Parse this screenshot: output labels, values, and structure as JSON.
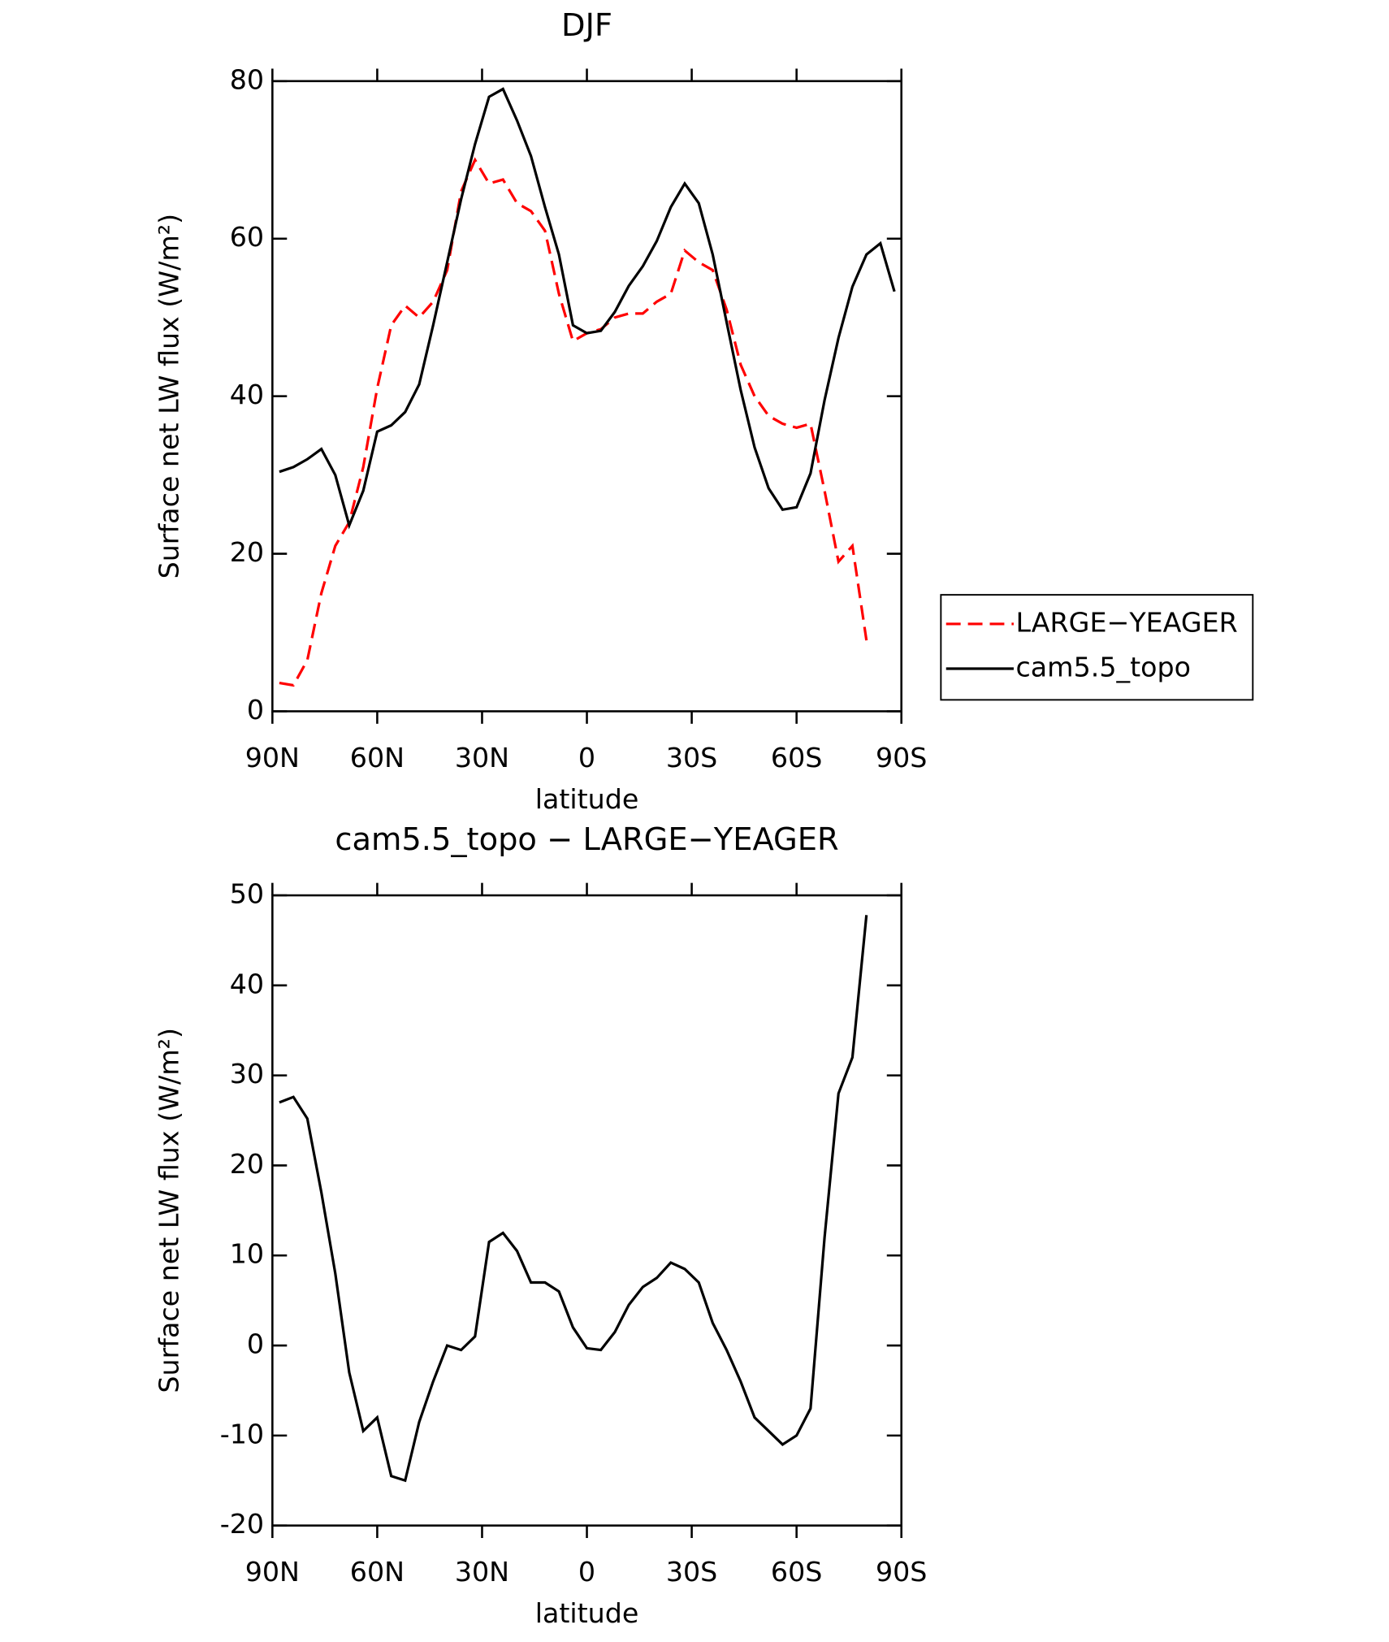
{
  "chart_data": [
    {
      "type": "line",
      "title": "DJF",
      "xlabel": "latitude",
      "ylabel": "Surface net LW flux (W/m²)",
      "x": [
        88,
        84,
        80,
        76,
        72,
        68,
        64,
        60,
        56,
        52,
        48,
        44,
        40,
        36,
        32,
        28,
        24,
        20,
        16,
        12,
        8,
        4,
        0,
        -4,
        -8,
        -12,
        -16,
        -20,
        -24,
        -28,
        -32,
        -36,
        -40,
        -44,
        -48,
        -52,
        -56,
        -60,
        -64,
        -68,
        -72,
        -76,
        -80,
        -84,
        -88
      ],
      "series": [
        {
          "name": "LARGE−YEAGER",
          "color": "#ff0000",
          "linestyle": "dashed",
          "values": [
            3.6,
            3.3,
            6.5,
            15,
            21,
            24,
            31,
            41,
            49,
            51.5,
            50,
            52,
            56,
            66,
            70,
            67,
            67.5,
            64.5,
            63.5,
            61,
            53,
            47,
            48,
            48.5,
            50,
            50.5,
            50.5,
            52,
            53,
            58.5,
            57,
            56,
            51,
            44,
            40,
            37.5,
            36.5,
            36,
            36.5,
            28,
            19,
            21,
            9,
            null,
            null
          ]
        },
        {
          "name": "cam5.5_topo",
          "color": "#000000",
          "linestyle": "solid",
          "values": [
            30.4,
            31,
            32,
            33.3,
            30,
            23.6,
            28,
            35.5,
            36.3,
            38,
            41.5,
            49,
            57,
            65,
            72,
            78,
            79,
            75,
            70.5,
            64,
            58,
            49,
            48,
            48.3,
            50.7,
            54,
            56.5,
            59.7,
            64,
            67,
            64.5,
            58,
            49.4,
            40.8,
            33.5,
            28.3,
            25.6,
            25.9,
            30.2,
            39.5,
            47.4,
            53.9,
            58,
            59.4,
            53.3
          ]
        }
      ],
      "xlim": [
        90,
        -90
      ],
      "xticks": [
        {
          "value": 90,
          "label": "90N"
        },
        {
          "value": 60,
          "label": "60N"
        },
        {
          "value": 30,
          "label": "30N"
        },
        0,
        {
          "value": -30,
          "label": "30S"
        },
        {
          "value": -60,
          "label": "60S"
        },
        {
          "value": -90,
          "label": "90S"
        }
      ],
      "ylim": [
        0,
        80
      ],
      "yticks": [
        0,
        20,
        40,
        60,
        80
      ],
      "legend": "right"
    },
    {
      "type": "line",
      "title": "cam5.5_topo − LARGE−YEAGER",
      "xlabel": "latitude",
      "ylabel": "Surface net LW flux (W/m²)",
      "x": [
        88,
        84,
        80,
        76,
        72,
        68,
        64,
        60,
        56,
        52,
        48,
        44,
        40,
        36,
        32,
        28,
        24,
        20,
        16,
        12,
        8,
        4,
        0,
        -4,
        -8,
        -12,
        -16,
        -20,
        -24,
        -28,
        -32,
        -36,
        -40,
        -44,
        -48,
        -52,
        -56,
        -60,
        -64,
        -68,
        -72,
        -76,
        -80,
        -84,
        -88
      ],
      "series": [
        {
          "color": "#000000",
          "linestyle": "solid",
          "values": [
            27,
            27.6,
            25.2,
            17,
            8,
            -3,
            -9.5,
            -8,
            -14.5,
            -15,
            -8.5,
            -4,
            0,
            -0.5,
            1,
            11.5,
            12.5,
            10.5,
            7,
            7,
            6,
            2,
            -0.3,
            -0.5,
            1.5,
            4.5,
            6.5,
            7.5,
            9.2,
            8.5,
            7,
            2.5,
            -0.5,
            -4,
            -8,
            -9.5,
            -11,
            -10,
            -7,
            12,
            28,
            32,
            47.8,
            null,
            null
          ]
        }
      ],
      "xlim": [
        90,
        -90
      ],
      "xticks": [
        {
          "value": 90,
          "label": "90N"
        },
        {
          "value": 60,
          "label": "60N"
        },
        {
          "value": 30,
          "label": "30N"
        },
        0,
        {
          "value": -30,
          "label": "30S"
        },
        {
          "value": -60,
          "label": "60S"
        },
        {
          "value": -90,
          "label": "90S"
        }
      ],
      "ylim": [
        -20,
        50
      ],
      "yticks": [
        -20,
        -10,
        0,
        10,
        20,
        30,
        40,
        50
      ]
    }
  ]
}
